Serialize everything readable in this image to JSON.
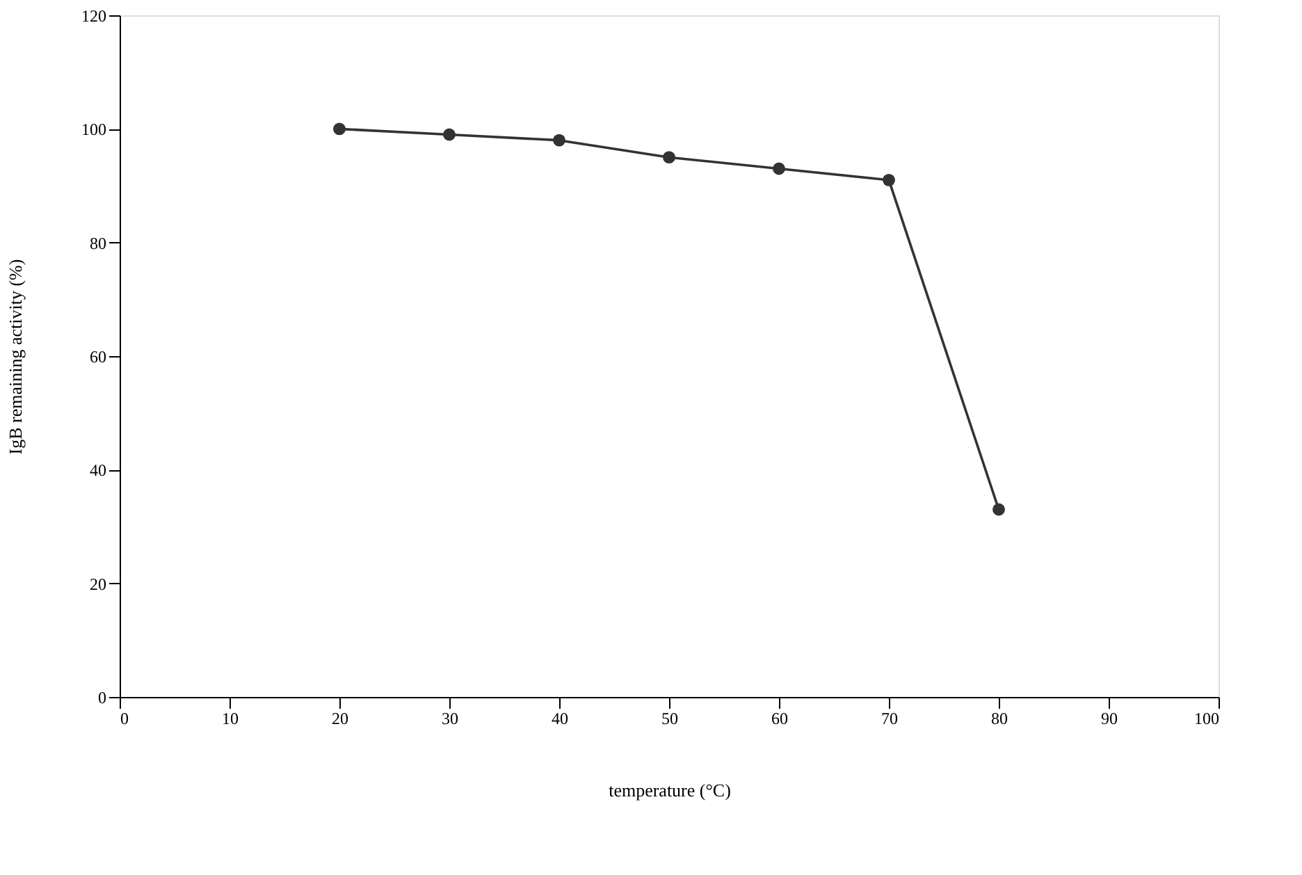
{
  "chart_data": {
    "type": "line",
    "xlabel": "temperature (°C)",
    "ylabel": "IgB remaining activity (%)",
    "x": [
      20,
      30,
      40,
      50,
      60,
      70,
      80
    ],
    "series": [
      {
        "color": "#333333",
        "values": [
          100,
          99,
          98,
          95,
          93,
          91,
          33
        ]
      }
    ],
    "xlim": [
      0,
      100
    ],
    "xticks": [
      0,
      10,
      20,
      30,
      40,
      50,
      60,
      70,
      80,
      90,
      100
    ],
    "ylim": [
      0,
      120
    ],
    "yticks": [
      0,
      20,
      40,
      60,
      80,
      100,
      120
    ],
    "grid": false,
    "legend": false,
    "marker": "circle",
    "line_style": "solid"
  }
}
